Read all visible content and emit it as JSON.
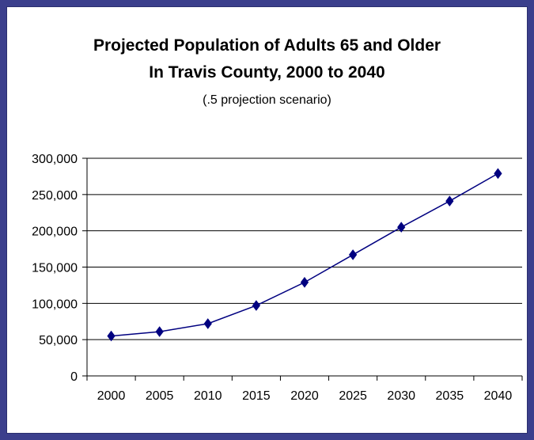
{
  "chart_data": {
    "type": "line",
    "title_line1": "Projected Population of Adults 65 and Older",
    "title_line2": "In Travis County, 2000 to 2040",
    "subtitle": "(.5 projection scenario)",
    "xlabel": "",
    "ylabel": "",
    "categories": [
      "2000",
      "2005",
      "2010",
      "2015",
      "2020",
      "2025",
      "2030",
      "2035",
      "2040"
    ],
    "series": [
      {
        "values": [
          55000,
          61000,
          72000,
          97000,
          129000,
          167000,
          205000,
          241000,
          279000
        ],
        "color": "#000080",
        "marker": "diamond"
      }
    ],
    "ylim": [
      0,
      300000
    ],
    "yticks": [
      0,
      50000,
      100000,
      150000,
      200000,
      250000,
      300000
    ],
    "ytick_labels": [
      "0",
      "50,000",
      "100,000",
      "150,000",
      "200,000",
      "250,000",
      "300,000"
    ],
    "grid": "horizontal",
    "legend": "none"
  }
}
